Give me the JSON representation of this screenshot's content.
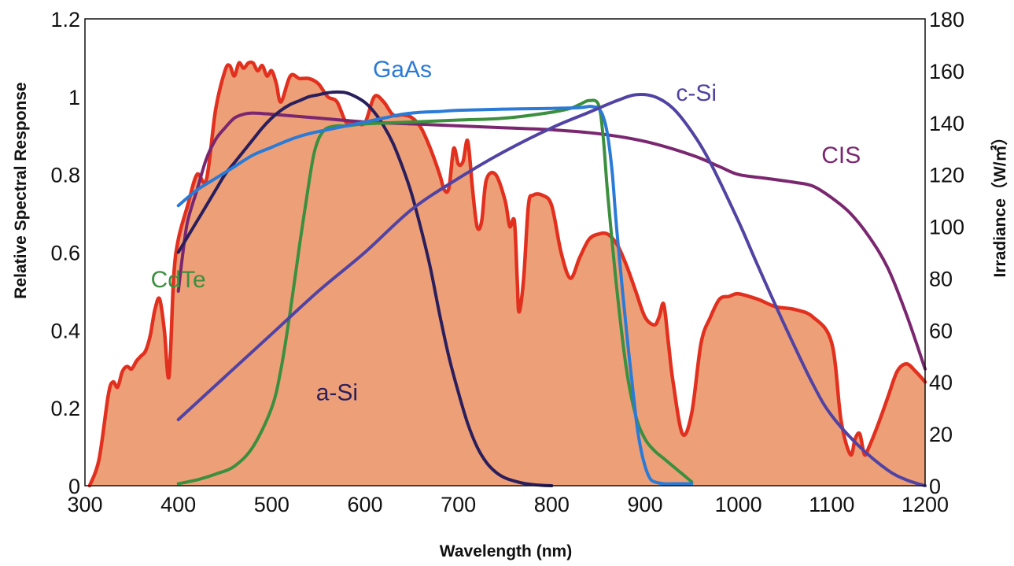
{
  "chart_data": {
    "type": "line",
    "xlabel": "Wavelength (nm)",
    "ylabel": "Relative Spectral Response",
    "y2label": "Irradiance（W/㎡）",
    "xlim": [
      300,
      1200
    ],
    "ylim": [
      0,
      1.2
    ],
    "y2lim": [
      0,
      180
    ],
    "grid": false,
    "x_ticks": [
      "300",
      "400",
      "500",
      "600",
      "700",
      "800",
      "900",
      "1000",
      "1100",
      "1200"
    ],
    "y_ticks": [
      "0",
      "0.2",
      "0.4",
      "0.6",
      "0.8",
      "1",
      "1.2"
    ],
    "y2_ticks": [
      "0",
      "20",
      "40",
      "60",
      "80",
      "100",
      "120",
      "140",
      "160",
      "180"
    ],
    "irradiance": {
      "name": "Irradiance",
      "axis": "right",
      "color": "#e2301f",
      "fill": "#eda078",
      "x": [
        305,
        315,
        325,
        330,
        335,
        340,
        345,
        350,
        355,
        360,
        365,
        370,
        375,
        380,
        385,
        390,
        395,
        400,
        410,
        420,
        430,
        440,
        450,
        455,
        460,
        465,
        470,
        475,
        480,
        485,
        490,
        495,
        500,
        505,
        510,
        520,
        530,
        540,
        550,
        560,
        570,
        580,
        590,
        600,
        610,
        620,
        630,
        640,
        650,
        660,
        670,
        680,
        685,
        690,
        695,
        700,
        705,
        710,
        715,
        720,
        725,
        730,
        740,
        750,
        755,
        760,
        763,
        765,
        770,
        775,
        780,
        790,
        800,
        810,
        820,
        830,
        840,
        850,
        860,
        870,
        880,
        890,
        900,
        910,
        915,
        920,
        925,
        930,
        940,
        950,
        960,
        970,
        980,
        990,
        1000,
        1020,
        1040,
        1060,
        1080,
        1100,
        1110,
        1120,
        1125,
        1130,
        1135,
        1140,
        1150,
        1160,
        1170,
        1180,
        1190,
        1200
      ],
      "values": [
        0,
        10,
        35,
        40,
        38,
        44,
        46,
        45,
        48,
        50,
        52,
        58,
        68,
        72,
        60,
        42,
        80,
        95,
        108,
        120,
        118,
        145,
        160,
        162,
        158,
        163,
        161,
        163,
        163,
        160,
        162,
        158,
        160,
        155,
        148,
        158,
        157,
        157,
        155,
        150,
        148,
        140,
        140,
        140,
        150,
        148,
        143,
        143,
        142,
        138,
        130,
        120,
        114,
        115,
        130,
        124,
        125,
        133,
        115,
        100,
        102,
        118,
        120,
        110,
        100,
        102,
        80,
        67,
        80,
        108,
        112,
        112,
        108,
        90,
        80,
        88,
        95,
        97,
        97,
        93,
        85,
        75,
        65,
        62,
        65,
        70,
        55,
        40,
        20,
        28,
        55,
        65,
        72,
        73,
        74,
        72,
        69,
        68,
        65,
        55,
        25,
        12,
        18,
        20,
        12,
        15,
        24,
        34,
        44,
        47,
        44,
        40
      ]
    },
    "series": [
      {
        "name": "CIS",
        "color": "#7a2770",
        "x": [
          400,
          405,
          410,
          420,
          430,
          440,
          450,
          460,
          470,
          480,
          500,
          550,
          600,
          650,
          700,
          750,
          800,
          850,
          900,
          950,
          980,
          1000,
          1030,
          1060,
          1080,
          1100,
          1120,
          1140,
          1160,
          1180,
          1200
        ],
        "values": [
          0.5,
          0.6,
          0.68,
          0.76,
          0.84,
          0.89,
          0.92,
          0.945,
          0.955,
          0.958,
          0.955,
          0.945,
          0.935,
          0.93,
          0.925,
          0.92,
          0.915,
          0.905,
          0.885,
          0.85,
          0.82,
          0.8,
          0.79,
          0.78,
          0.77,
          0.74,
          0.7,
          0.64,
          0.56,
          0.44,
          0.3
        ]
      },
      {
        "name": "a-Si",
        "color": "#2a1f5c",
        "x": [
          400,
          410,
          420,
          430,
          440,
          450,
          460,
          470,
          480,
          490,
          500,
          510,
          520,
          530,
          540,
          550,
          560,
          570,
          580,
          590,
          600,
          610,
          620,
          630,
          640,
          650,
          660,
          670,
          680,
          690,
          700,
          710,
          720,
          730,
          740,
          750,
          760,
          770,
          780,
          790,
          800
        ],
        "values": [
          0.6,
          0.64,
          0.68,
          0.72,
          0.76,
          0.8,
          0.83,
          0.86,
          0.89,
          0.92,
          0.945,
          0.965,
          0.98,
          0.99,
          1.0,
          1.005,
          1.01,
          1.012,
          1.01,
          1.0,
          0.985,
          0.96,
          0.925,
          0.88,
          0.82,
          0.75,
          0.66,
          0.56,
          0.44,
          0.33,
          0.24,
          0.16,
          0.1,
          0.06,
          0.035,
          0.02,
          0.012,
          0.006,
          0.003,
          0.001,
          0
        ]
      },
      {
        "name": "CdTe",
        "color": "#3b8f3e",
        "x": [
          400,
          420,
          440,
          460,
          480,
          500,
          510,
          520,
          530,
          540,
          545,
          550,
          555,
          560,
          570,
          580,
          600,
          650,
          700,
          750,
          800,
          820,
          830,
          840,
          850,
          855,
          860,
          870,
          880,
          890,
          900,
          910,
          920,
          930,
          940,
          950
        ],
        "values": [
          0.005,
          0.015,
          0.03,
          0.05,
          0.1,
          0.2,
          0.3,
          0.45,
          0.62,
          0.78,
          0.85,
          0.89,
          0.91,
          0.92,
          0.925,
          0.925,
          0.93,
          0.935,
          0.94,
          0.945,
          0.96,
          0.97,
          0.98,
          0.99,
          0.98,
          0.9,
          0.75,
          0.5,
          0.3,
          0.18,
          0.12,
          0.09,
          0.07,
          0.05,
          0.03,
          0.01
        ]
      },
      {
        "name": "GaAs",
        "color": "#2a7ad6",
        "x": [
          400,
          420,
          440,
          460,
          480,
          500,
          520,
          540,
          560,
          580,
          600,
          620,
          640,
          660,
          680,
          700,
          750,
          800,
          830,
          840,
          845,
          850,
          855,
          860,
          865,
          870,
          880,
          890,
          895,
          900,
          905,
          910,
          920,
          930,
          940,
          950
        ],
        "values": [
          0.72,
          0.76,
          0.79,
          0.82,
          0.85,
          0.87,
          0.89,
          0.905,
          0.915,
          0.925,
          0.935,
          0.945,
          0.955,
          0.96,
          0.962,
          0.965,
          0.968,
          0.97,
          0.972,
          0.975,
          0.974,
          0.97,
          0.95,
          0.9,
          0.8,
          0.65,
          0.4,
          0.18,
          0.1,
          0.05,
          0.02,
          0.01,
          0.005,
          0.005,
          0.005,
          0.005
        ]
      },
      {
        "name": "c-Si",
        "color": "#5143a3",
        "x": [
          400,
          450,
          500,
          550,
          600,
          650,
          700,
          750,
          800,
          840,
          870,
          890,
          910,
          930,
          950,
          970,
          1000,
          1020,
          1050,
          1080,
          1100,
          1130,
          1160,
          1180,
          1200
        ],
        "values": [
          0.17,
          0.28,
          0.39,
          0.5,
          0.6,
          0.71,
          0.79,
          0.86,
          0.92,
          0.96,
          0.99,
          1.005,
          1.0,
          0.97,
          0.91,
          0.83,
          0.68,
          0.57,
          0.41,
          0.26,
          0.18,
          0.1,
          0.04,
          0.015,
          0
        ]
      }
    ],
    "annotations": [
      {
        "text": "GaAs",
        "series": "GaAs",
        "x": 640,
        "y": 1.05
      },
      {
        "text": "c-Si",
        "series": "c-Si",
        "x": 955,
        "y": 0.99
      },
      {
        "text": "CIS",
        "series": "CIS",
        "x": 1110,
        "y": 0.83
      },
      {
        "text": "CdTe",
        "series": "CdTe",
        "x": 400,
        "y": 0.51
      },
      {
        "text": "a-Si",
        "series": "a-Si",
        "x": 570,
        "y": 0.22
      }
    ]
  }
}
